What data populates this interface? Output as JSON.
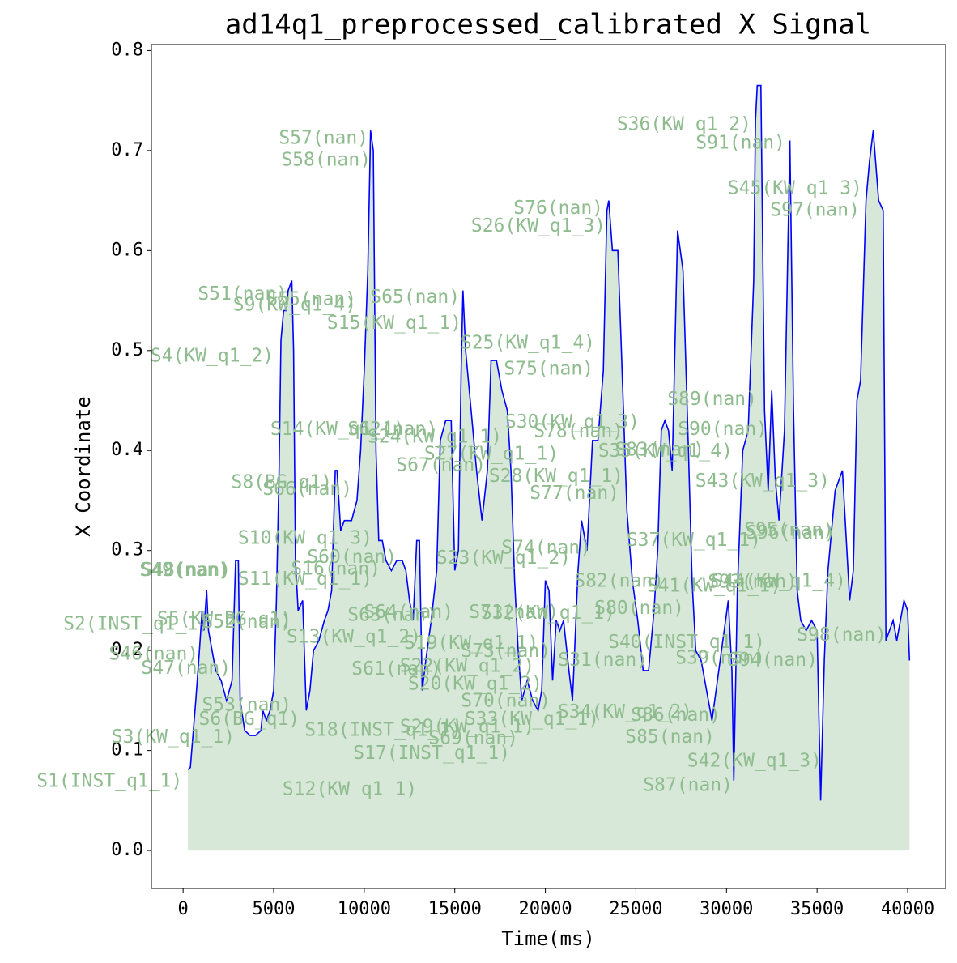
{
  "chart_data": {
    "type": "line",
    "title": "ad14q1_preprocessed_calibrated X Signal",
    "xlabel": "Time(ms)",
    "ylabel": "X Coordinate",
    "xlim": [
      -1750,
      42100
    ],
    "ylim": [
      -0.038,
      0.806
    ],
    "xticks": [
      0,
      5000,
      10000,
      15000,
      20000,
      25000,
      30000,
      35000,
      40000
    ],
    "yticks": [
      {
        "value": 0,
        "label": "0.0"
      },
      0.1,
      0.2,
      0.3,
      0.4,
      0.5,
      0.6,
      0.7,
      0.8
    ],
    "fill_color": "#8fbc8f",
    "series": [
      {
        "color": "#0000ff",
        "x": [
          268,
          400,
          700,
          900,
          1050,
          1150,
          1300,
          1400,
          1600,
          1800,
          2100,
          2400,
          2700,
          2900,
          3050,
          3150,
          3400,
          3700,
          4000,
          4300,
          4400,
          4600,
          4800,
          5000,
          5150,
          5300,
          5400,
          5550,
          5700,
          5800,
          6000,
          6100,
          6200,
          6350,
          6600,
          6800,
          7000,
          7200,
          7500,
          7800,
          8000,
          8200,
          8400,
          8500,
          8700,
          8900,
          9100,
          9300,
          9600,
          9800,
          10000,
          10200,
          10350,
          10500,
          10650,
          10800,
          11000,
          11200,
          11500,
          11800,
          12100,
          12300,
          12500,
          12700,
          12900,
          13050,
          13200,
          13400,
          13700,
          14000,
          14200,
          14500,
          14800,
          15000,
          15200,
          15350,
          15450,
          15600,
          15900,
          16200,
          16500,
          16800,
          17000,
          17300,
          17600,
          17900,
          18100,
          18300,
          18500,
          18700,
          19000,
          19300,
          19600,
          19800,
          20000,
          20200,
          20400,
          20600,
          20800,
          21000,
          21300,
          21500,
          21800,
          22000,
          22300,
          22600,
          22900,
          23200,
          23400,
          23500,
          23700,
          24000,
          24200,
          24500,
          24800,
          25100,
          25400,
          25700,
          26000,
          26200,
          26400,
          26600,
          26800,
          27000,
          27300,
          27600,
          27900,
          28100,
          28300,
          28600,
          28900,
          29200,
          29500,
          29800,
          30100,
          30300,
          30400,
          30600,
          30900,
          31200,
          31500,
          31600,
          31700,
          31900,
          32100,
          32300,
          32500,
          32700,
          32900,
          33200,
          33500,
          33700,
          33900,
          34100,
          34400,
          34700,
          35000,
          35200,
          35400,
          35600,
          36000,
          36400,
          36800,
          37000,
          37200,
          37400,
          37700,
          37900,
          38100,
          38400,
          38650,
          38800,
          39000,
          39200,
          39400,
          39800,
          40000,
          40100
        ],
        "values": [
          0.081,
          0.083,
          0.15,
          0.2,
          0.24,
          0.22,
          0.26,
          0.22,
          0.2,
          0.18,
          0.17,
          0.15,
          0.17,
          0.29,
          0.29,
          0.15,
          0.12,
          0.115,
          0.115,
          0.12,
          0.14,
          0.13,
          0.14,
          0.16,
          0.25,
          0.38,
          0.51,
          0.54,
          0.54,
          0.56,
          0.57,
          0.5,
          0.29,
          0.24,
          0.25,
          0.14,
          0.16,
          0.2,
          0.21,
          0.23,
          0.24,
          0.26,
          0.38,
          0.38,
          0.32,
          0.33,
          0.33,
          0.33,
          0.35,
          0.4,
          0.48,
          0.58,
          0.72,
          0.7,
          0.4,
          0.31,
          0.31,
          0.29,
          0.28,
          0.29,
          0.29,
          0.28,
          0.25,
          0.23,
          0.31,
          0.31,
          0.16,
          0.19,
          0.23,
          0.28,
          0.41,
          0.43,
          0.43,
          0.28,
          0.3,
          0.48,
          0.56,
          0.5,
          0.44,
          0.38,
          0.33,
          0.38,
          0.49,
          0.49,
          0.46,
          0.44,
          0.38,
          0.27,
          0.2,
          0.15,
          0.17,
          0.15,
          0.14,
          0.16,
          0.27,
          0.26,
          0.17,
          0.23,
          0.22,
          0.23,
          0.18,
          0.15,
          0.28,
          0.33,
          0.3,
          0.41,
          0.41,
          0.48,
          0.64,
          0.65,
          0.6,
          0.6,
          0.5,
          0.34,
          0.27,
          0.23,
          0.18,
          0.18,
          0.24,
          0.3,
          0.42,
          0.43,
          0.42,
          0.38,
          0.62,
          0.58,
          0.4,
          0.27,
          0.2,
          0.19,
          0.16,
          0.13,
          0.17,
          0.21,
          0.25,
          0.18,
          0.07,
          0.26,
          0.4,
          0.42,
          0.57,
          0.73,
          0.765,
          0.765,
          0.44,
          0.36,
          0.46,
          0.37,
          0.33,
          0.42,
          0.71,
          0.44,
          0.26,
          0.23,
          0.22,
          0.23,
          0.22,
          0.05,
          0.19,
          0.28,
          0.36,
          0.38,
          0.25,
          0.28,
          0.45,
          0.47,
          0.65,
          0.69,
          0.72,
          0.65,
          0.64,
          0.21,
          0.22,
          0.23,
          0.21,
          0.25,
          0.24,
          0.19
        ]
      }
    ],
    "annotations": [
      {
        "text": "S1(INST_q1_1)",
        "x": -40,
        "y": 0.069
      },
      {
        "text": "S2(INST_q1_1)",
        "x": 1430,
        "y": 0.226
      },
      {
        "text": "S3(KW_q1_1)",
        "x": 2860,
        "y": 0.113
      },
      {
        "text": "S4(KW_q1_2)",
        "x": 5005,
        "y": 0.494
      },
      {
        "text": "S5(KW_BG_q1)",
        "x": 5990,
        "y": 0.231
      },
      {
        "text": "S6(BG_q1)",
        "x": 6435,
        "y": 0.131
      },
      {
        "text": "S8(BG_q1)",
        "x": 8223,
        "y": 0.368
      },
      {
        "text": "S9(KW_q1_4)",
        "x": 9564,
        "y": 0.545
      },
      {
        "text": "S10(KW_q1_3)",
        "x": 10457,
        "y": 0.312
      },
      {
        "text": "S11(KW_q1_1)",
        "x": 10457,
        "y": 0.271
      },
      {
        "text": "S12(KW_q1_1)",
        "x": 12915,
        "y": 0.061
      },
      {
        "text": "S13(KW_q1_2)",
        "x": 13139,
        "y": 0.213
      },
      {
        "text": "S14(KW_q1_1)",
        "x": 12245,
        "y": 0.421
      },
      {
        "text": "S15(KW_q1_1)",
        "x": 15373,
        "y": 0.527
      },
      {
        "text": "S16(nan)",
        "x": 10904,
        "y": 0.281
      },
      {
        "text": "S17(INST_q1_1)",
        "x": 18055,
        "y": 0.097
      },
      {
        "text": "S18(INST_q1_1)",
        "x": 15373,
        "y": 0.12
      },
      {
        "text": "S19(KW_q1_1)",
        "x": 19619,
        "y": 0.207
      },
      {
        "text": "S20(KW_q1_2)",
        "x": 19842,
        "y": 0.166
      },
      {
        "text": "S22(KW_q1_2)",
        "x": 19395,
        "y": 0.184
      },
      {
        "text": "S23(KW_q1_2)",
        "x": 21406,
        "y": 0.292
      },
      {
        "text": "S24(KW_q1_1)",
        "x": 17608,
        "y": 0.413
      },
      {
        "text": "S25(KW_q1_4)",
        "x": 22747,
        "y": 0.507
      },
      {
        "text": "S26(KW_q1_3)",
        "x": 23328,
        "y": 0.624
      },
      {
        "text": "S27(KW_q1_1)",
        "x": 20736,
        "y": 0.396
      },
      {
        "text": "S28(KW_q1_1)",
        "x": 24311,
        "y": 0.374
      },
      {
        "text": "S29(KW_q1_1)",
        "x": 19395,
        "y": 0.123
      },
      {
        "text": "S30(KW_q1_3)",
        "x": 25205,
        "y": 0.428
      },
      {
        "text": "S31(nan)",
        "x": 25652,
        "y": 0.19
      },
      {
        "text": "S32(KW_q1_1)",
        "x": 23864,
        "y": 0.237
      },
      {
        "text": "S33(KW_q1_1)",
        "x": 22971,
        "y": 0.131
      },
      {
        "text": "S34(KW_q1_2)",
        "x": 28110,
        "y": 0.138
      },
      {
        "text": "S35(KW_q1_4)",
        "x": 30344,
        "y": 0.399
      },
      {
        "text": "S36(KW_q1_2)",
        "x": 31372,
        "y": 0.726
      },
      {
        "text": "S37(KW_q1_1)",
        "x": 31908,
        "y": 0.31
      },
      {
        "text": "S39(nan)",
        "x": 32132,
        "y": 0.192
      },
      {
        "text": "S40(INST_q1_1)",
        "x": 32132,
        "y": 0.208
      },
      {
        "text": "S41(KW_q1_1)",
        "x": 33026,
        "y": 0.264
      },
      {
        "text": "S42(KW_q1_3)",
        "x": 35260,
        "y": 0.089
      },
      {
        "text": "S43(KW_q1_3)",
        "x": 35707,
        "y": 0.369
      },
      {
        "text": "S44(KW_q1_4)",
        "x": 36601,
        "y": 0.269
      },
      {
        "text": "S45(KW_q1_3)",
        "x": 37495,
        "y": 0.662
      },
      {
        "text": "S46(nan)",
        "x": 850,
        "y": 0.196
      },
      {
        "text": "S47(nan)",
        "x": 2637,
        "y": 0.182
      },
      {
        "text": "S48(nan)",
        "x": 2637,
        "y": 0.28
      },
      {
        "text": "S49(nan)",
        "x": 2547,
        "y": 0.28
      },
      {
        "text": "S51(nan)",
        "x": 5765,
        "y": 0.556
      },
      {
        "text": "S52(nan)",
        "x": 5990,
        "y": 0.228
      },
      {
        "text": "S53(nan)",
        "x": 5990,
        "y": 0.145
      },
      {
        "text": "S55(nan)",
        "x": 9564,
        "y": 0.551
      },
      {
        "text": "S57(nan)",
        "x": 10234,
        "y": 0.712
      },
      {
        "text": "S58(nan)",
        "x": 10368,
        "y": 0.69
      },
      {
        "text": "S60(nan)",
        "x": 11798,
        "y": 0.293
      },
      {
        "text": "S61(nan)",
        "x": 14256,
        "y": 0.181
      },
      {
        "text": "S62(nan)",
        "x": 14033,
        "y": 0.421
      },
      {
        "text": "S63(nan)",
        "x": 14033,
        "y": 0.235
      },
      {
        "text": "S64(nan)",
        "x": 14926,
        "y": 0.238
      },
      {
        "text": "S65(nan)",
        "x": 15284,
        "y": 0.553
      },
      {
        "text": "S66(nan)",
        "x": 9340,
        "y": 0.361
      },
      {
        "text": "S67(nan)",
        "x": 16714,
        "y": 0.385
      },
      {
        "text": "S69(nan)",
        "x": 18502,
        "y": 0.112
      },
      {
        "text": "S70(nan)",
        "x": 20289,
        "y": 0.149
      },
      {
        "text": "S71(nan)",
        "x": 20736,
        "y": 0.238
      },
      {
        "text": "S73(nan)",
        "x": 20289,
        "y": 0.199
      },
      {
        "text": "S74(nan)",
        "x": 22524,
        "y": 0.302
      },
      {
        "text": "S75(nan)",
        "x": 22658,
        "y": 0.481
      },
      {
        "text": "S76(nan)",
        "x": 23194,
        "y": 0.642
      },
      {
        "text": "S77(nan)",
        "x": 24088,
        "y": 0.357
      },
      {
        "text": "S78(nan)",
        "x": 24311,
        "y": 0.419
      },
      {
        "text": "S80(nan)",
        "x": 27663,
        "y": 0.242
      },
      {
        "text": "S82(nan)",
        "x": 26546,
        "y": 0.269
      },
      {
        "text": "S83(nan)",
        "x": 28780,
        "y": 0.4
      },
      {
        "text": "S85(nan)",
        "x": 29361,
        "y": 0.113
      },
      {
        "text": "S86(nan)",
        "x": 29674,
        "y": 0.135
      },
      {
        "text": "S87(nan)",
        "x": 30344,
        "y": 0.065
      },
      {
        "text": "S89(nan)",
        "x": 31685,
        "y": 0.451
      },
      {
        "text": "S90(nan)",
        "x": 32266,
        "y": 0.421
      },
      {
        "text": "S91(nan)",
        "x": 33250,
        "y": 0.707
      },
      {
        "text": "S93(nan)",
        "x": 33920,
        "y": 0.268
      },
      {
        "text": "S94(nan)",
        "x": 35036,
        "y": 0.19
      },
      {
        "text": "S95(nan)",
        "x": 35930,
        "y": 0.32
      },
      {
        "text": "S96(nan)",
        "x": 36020,
        "y": 0.317
      },
      {
        "text": "S97(nan)",
        "x": 37361,
        "y": 0.64
      },
      {
        "text": "S98(nan)",
        "x": 38836,
        "y": 0.215
      }
    ]
  }
}
